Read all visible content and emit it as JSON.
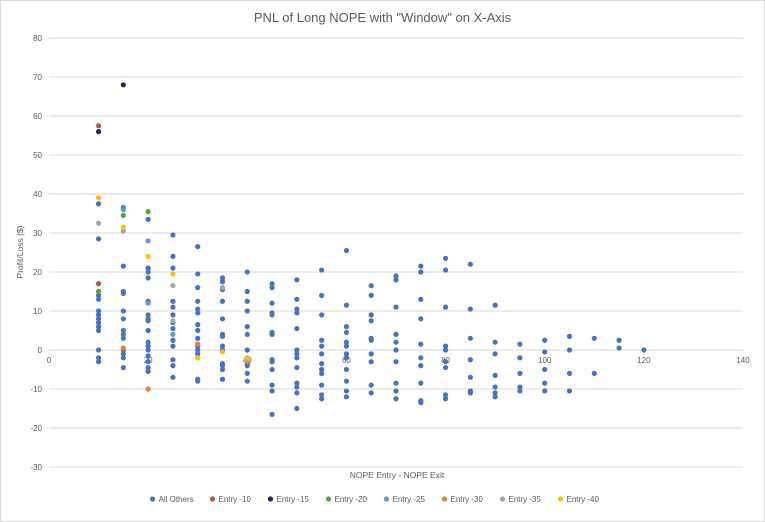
{
  "chart_data": {
    "type": "scatter",
    "title": "PNL of Long NOPE with \"Window\" on X-Axis",
    "xlabel": "NOPE Entry - NOPE Exit",
    "ylabel": "Profit/Loss ($)",
    "xlim": [
      0,
      140
    ],
    "ylim": [
      -30,
      80
    ],
    "xticks": [
      0,
      20,
      40,
      60,
      80,
      100,
      120,
      140
    ],
    "yticks": [
      -30,
      -20,
      -10,
      0,
      10,
      20,
      30,
      40,
      50,
      60,
      70,
      80
    ],
    "grid": true,
    "legend_position": "bottom",
    "series": [
      {
        "name": "All Others",
        "color": "#4472c4",
        "points": [
          [
            10,
            37.5
          ],
          [
            10,
            28.5
          ],
          [
            10,
            14
          ],
          [
            10,
            13
          ],
          [
            10,
            10
          ],
          [
            10,
            9
          ],
          [
            10,
            8
          ],
          [
            10,
            7
          ],
          [
            10,
            6
          ],
          [
            10,
            5
          ],
          [
            10,
            0
          ],
          [
            10,
            -2
          ],
          [
            10,
            -3
          ],
          [
            15,
            36.5
          ],
          [
            15,
            21.5
          ],
          [
            15,
            15
          ],
          [
            15,
            14.5
          ],
          [
            15,
            10
          ],
          [
            15,
            8
          ],
          [
            15,
            5
          ],
          [
            15,
            4
          ],
          [
            15,
            3
          ],
          [
            15,
            0
          ],
          [
            15,
            -1
          ],
          [
            15,
            -2
          ],
          [
            15,
            -4.5
          ],
          [
            20,
            33.5
          ],
          [
            20,
            21
          ],
          [
            20,
            20
          ],
          [
            20,
            18.5
          ],
          [
            20,
            12.5
          ],
          [
            20,
            9
          ],
          [
            20,
            8
          ],
          [
            20,
            7.5
          ],
          [
            20,
            5
          ],
          [
            20,
            2
          ],
          [
            20,
            1
          ],
          [
            20,
            0
          ],
          [
            20,
            -1.5
          ],
          [
            20,
            -3
          ],
          [
            20,
            -4.5
          ],
          [
            20,
            -5.5
          ],
          [
            25,
            29.5
          ],
          [
            25,
            24
          ],
          [
            25,
            21
          ],
          [
            25,
            12.5
          ],
          [
            25,
            11
          ],
          [
            25,
            9
          ],
          [
            25,
            7
          ],
          [
            25,
            5.5
          ],
          [
            25,
            2.5
          ],
          [
            25,
            1
          ],
          [
            25,
            -2.5
          ],
          [
            25,
            -4
          ],
          [
            25,
            -7
          ],
          [
            30,
            26.5
          ],
          [
            30,
            19.5
          ],
          [
            30,
            16
          ],
          [
            30,
            12.5
          ],
          [
            30,
            10.5
          ],
          [
            30,
            9.5
          ],
          [
            30,
            6.5
          ],
          [
            30,
            5
          ],
          [
            30,
            3
          ],
          [
            30,
            1
          ],
          [
            30,
            0
          ],
          [
            30,
            -1
          ],
          [
            30,
            -2
          ],
          [
            30,
            -7.5
          ],
          [
            30,
            -8
          ],
          [
            35,
            18.5
          ],
          [
            35,
            17.5
          ],
          [
            35,
            15.5
          ],
          [
            35,
            12.5
          ],
          [
            35,
            8
          ],
          [
            35,
            4
          ],
          [
            35,
            3.5
          ],
          [
            35,
            1
          ],
          [
            35,
            0
          ],
          [
            35,
            -3.5
          ],
          [
            35,
            -4
          ],
          [
            35,
            -5
          ],
          [
            35,
            -7.5
          ],
          [
            40,
            20
          ],
          [
            40,
            15
          ],
          [
            40,
            12.5
          ],
          [
            40,
            10
          ],
          [
            40,
            6
          ],
          [
            40,
            4
          ],
          [
            40,
            0
          ],
          [
            40,
            -2
          ],
          [
            40,
            -3.5
          ],
          [
            40,
            -4
          ],
          [
            40,
            -6
          ],
          [
            40,
            -8
          ],
          [
            45,
            17
          ],
          [
            45,
            16
          ],
          [
            45,
            12
          ],
          [
            45,
            9.5
          ],
          [
            45,
            9
          ],
          [
            45,
            4.5
          ],
          [
            45,
            4
          ],
          [
            45,
            -2.5
          ],
          [
            45,
            -3
          ],
          [
            45,
            -5
          ],
          [
            45,
            -9
          ],
          [
            45,
            -10.5
          ],
          [
            45,
            -16.5
          ],
          [
            50,
            18
          ],
          [
            50,
            13
          ],
          [
            50,
            10.5
          ],
          [
            50,
            9.5
          ],
          [
            50,
            5.5
          ],
          [
            50,
            0
          ],
          [
            50,
            -1
          ],
          [
            50,
            -2
          ],
          [
            50,
            -4.5
          ],
          [
            50,
            -8.5
          ],
          [
            50,
            -9.5
          ],
          [
            50,
            -11
          ],
          [
            50,
            -15
          ],
          [
            55,
            20.5
          ],
          [
            55,
            14
          ],
          [
            55,
            9
          ],
          [
            55,
            2.5
          ],
          [
            55,
            1
          ],
          [
            55,
            -1
          ],
          [
            55,
            -3.5
          ],
          [
            55,
            -5
          ],
          [
            55,
            -6
          ],
          [
            55,
            -9
          ],
          [
            55,
            -11.5
          ],
          [
            55,
            -12.5
          ],
          [
            60,
            25.5
          ],
          [
            60,
            11.5
          ],
          [
            60,
            6
          ],
          [
            60,
            4.5
          ],
          [
            60,
            2
          ],
          [
            60,
            1
          ],
          [
            60,
            -1
          ],
          [
            60,
            -2
          ],
          [
            60,
            -5
          ],
          [
            60,
            -8
          ],
          [
            60,
            -10.5
          ],
          [
            60,
            -12
          ],
          [
            65,
            16.5
          ],
          [
            65,
            14
          ],
          [
            65,
            9
          ],
          [
            65,
            7.5
          ],
          [
            65,
            3
          ],
          [
            65,
            2.5
          ],
          [
            65,
            -1
          ],
          [
            65,
            -3
          ],
          [
            65,
            -9
          ],
          [
            65,
            -11
          ],
          [
            70,
            19
          ],
          [
            70,
            18
          ],
          [
            70,
            11
          ],
          [
            70,
            4
          ],
          [
            70,
            2
          ],
          [
            70,
            0
          ],
          [
            70,
            -3
          ],
          [
            70,
            -8.5
          ],
          [
            70,
            -10.5
          ],
          [
            70,
            -12.5
          ],
          [
            75,
            21.5
          ],
          [
            75,
            20
          ],
          [
            75,
            13
          ],
          [
            75,
            8
          ],
          [
            75,
            1.5
          ],
          [
            75,
            -2
          ],
          [
            75,
            -4
          ],
          [
            75,
            -8.5
          ],
          [
            75,
            -13
          ],
          [
            75,
            -13.5
          ],
          [
            80,
            23.5
          ],
          [
            80,
            20.5
          ],
          [
            80,
            11
          ],
          [
            80,
            1
          ],
          [
            80,
            0
          ],
          [
            80,
            -3
          ],
          [
            80,
            -4.5
          ],
          [
            80,
            -11.5
          ],
          [
            80,
            -12.5
          ],
          [
            85,
            22
          ],
          [
            85,
            10.5
          ],
          [
            85,
            3
          ],
          [
            85,
            -2.5
          ],
          [
            85,
            -7
          ],
          [
            85,
            -10.5
          ],
          [
            85,
            -11
          ],
          [
            90,
            11.5
          ],
          [
            90,
            2
          ],
          [
            90,
            -1
          ],
          [
            90,
            -6.5
          ],
          [
            90,
            -9.5
          ],
          [
            90,
            -11
          ],
          [
            90,
            -12
          ],
          [
            95,
            1.5
          ],
          [
            95,
            -2
          ],
          [
            95,
            -6
          ],
          [
            95,
            -9.5
          ],
          [
            95,
            -10.5
          ],
          [
            100,
            2.5
          ],
          [
            100,
            -0.5
          ],
          [
            100,
            -5
          ],
          [
            100,
            -8.5
          ],
          [
            100,
            -10.5
          ],
          [
            105,
            3.5
          ],
          [
            105,
            0
          ],
          [
            105,
            -6
          ],
          [
            105,
            -10.5
          ],
          [
            110,
            3
          ],
          [
            110,
            -6
          ],
          [
            115,
            2.5
          ],
          [
            115,
            0.5
          ],
          [
            120,
            0
          ]
        ]
      },
      {
        "name": "Entry -10",
        "color": "#c0504d",
        "points": [
          [
            10,
            57.5
          ],
          [
            10,
            17
          ]
        ]
      },
      {
        "name": "Entry -15",
        "color": "#1f2a5c",
        "points": [
          [
            15,
            68
          ],
          [
            10,
            56
          ]
        ]
      },
      {
        "name": "Entry -20",
        "color": "#5aa03c",
        "points": [
          [
            20,
            35.5
          ],
          [
            15,
            34.5
          ],
          [
            10,
            15
          ]
        ]
      },
      {
        "name": "Entry -25",
        "color": "#5b9bd5",
        "points": [
          [
            15,
            36
          ],
          [
            20,
            28
          ],
          [
            20,
            12
          ],
          [
            25,
            4
          ]
        ]
      },
      {
        "name": "Entry -30",
        "color": "#ed7d31",
        "points": [
          [
            20,
            -10
          ],
          [
            15,
            0.5
          ],
          [
            30,
            1.5
          ],
          [
            40,
            -3
          ]
        ]
      },
      {
        "name": "Entry -35",
        "color": "#a5a5a5",
        "points": [
          [
            10,
            32.5
          ],
          [
            15,
            30.5
          ],
          [
            25,
            16.5
          ],
          [
            35,
            16
          ],
          [
            25,
            7.5
          ],
          [
            40,
            -2.5
          ]
        ]
      },
      {
        "name": "Entry -40",
        "color": "#ffc000",
        "points": [
          [
            10,
            39
          ],
          [
            15,
            31.5
          ],
          [
            20,
            24
          ],
          [
            25,
            19.5
          ],
          [
            30,
            -2
          ],
          [
            35,
            -0.5
          ],
          [
            40,
            -2
          ]
        ]
      }
    ]
  }
}
